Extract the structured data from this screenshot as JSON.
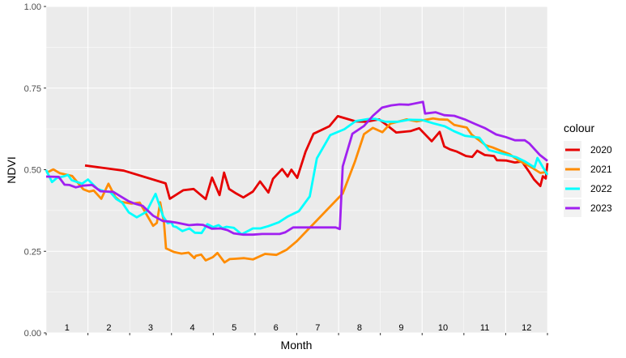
{
  "chart_data": {
    "type": "line",
    "xlabel": "Month",
    "ylabel": "NDVI",
    "xlim": [
      0,
      12
    ],
    "ylim": [
      0,
      1
    ],
    "y_ticks": [
      "0.00",
      "0.25",
      "0.50",
      "0.75",
      "1.00"
    ],
    "y_tick_values": [
      0,
      0.25,
      0.5,
      0.75,
      1.0
    ],
    "month_labels": [
      "1",
      "2",
      "3",
      "4",
      "5",
      "6",
      "7",
      "8",
      "9",
      "10",
      "11",
      "12"
    ],
    "grid": true,
    "panel_background": "#ebebeb",
    "legend": {
      "title": "colour",
      "position": "right"
    },
    "series": [
      {
        "name": "2020",
        "color": "#e60000",
        "x": [
          0.93,
          1.86,
          2.86,
          2.96,
          3.28,
          3.53,
          3.82,
          3.97,
          4.15,
          4.26,
          4.38,
          4.55,
          4.72,
          4.95,
          5.12,
          5.32,
          5.43,
          5.65,
          5.78,
          5.87,
          6.01,
          6.21,
          6.4,
          6.78,
          6.98,
          7.41,
          7.66,
          7.97,
          8.14,
          8.38,
          8.72,
          8.93,
          9.23,
          9.42,
          9.53,
          9.67,
          9.82,
          10.05,
          10.2,
          10.32,
          10.5,
          10.72,
          10.79,
          11.02,
          11.22,
          11.39,
          11.57,
          11.68,
          11.83,
          11.89,
          11.96,
          12.0
        ],
        "y": [
          0.513,
          0.497,
          0.458,
          0.411,
          0.437,
          0.441,
          0.41,
          0.476,
          0.422,
          0.491,
          0.441,
          0.427,
          0.415,
          0.433,
          0.464,
          0.43,
          0.472,
          0.502,
          0.479,
          0.5,
          0.475,
          0.555,
          0.61,
          0.633,
          0.664,
          0.648,
          0.647,
          0.654,
          0.638,
          0.614,
          0.618,
          0.627,
          0.587,
          0.616,
          0.571,
          0.562,
          0.556,
          0.542,
          0.539,
          0.558,
          0.545,
          0.542,
          0.529,
          0.528,
          0.522,
          0.525,
          0.492,
          0.47,
          0.45,
          0.48,
          0.473,
          0.52
        ]
      },
      {
        "name": "2021",
        "color": "#ff8c00",
        "x": [
          0.0,
          0.17,
          0.33,
          0.62,
          0.89,
          1.03,
          1.14,
          1.32,
          1.49,
          1.65,
          1.78,
          2.04,
          2.24,
          2.56,
          2.65,
          2.73,
          2.82,
          2.87,
          3.06,
          3.24,
          3.41,
          3.55,
          3.58,
          3.71,
          3.82,
          3.99,
          4.1,
          4.27,
          4.39,
          4.52,
          4.74,
          4.95,
          5.24,
          5.51,
          5.76,
          6.0,
          7.1,
          7.39,
          7.61,
          7.82,
          8.05,
          8.24,
          8.63,
          8.87,
          9.26,
          9.41,
          9.61,
          9.77,
          10.07,
          10.19,
          10.52,
          10.69,
          10.88,
          11.1,
          11.31,
          11.57,
          11.83,
          12.0
        ],
        "y": [
          0.49,
          0.501,
          0.489,
          0.481,
          0.44,
          0.433,
          0.436,
          0.411,
          0.457,
          0.417,
          0.402,
          0.396,
          0.399,
          0.328,
          0.337,
          0.4,
          0.338,
          0.259,
          0.248,
          0.243,
          0.246,
          0.229,
          0.236,
          0.24,
          0.222,
          0.232,
          0.245,
          0.216,
          0.226,
          0.227,
          0.229,
          0.225,
          0.242,
          0.239,
          0.255,
          0.281,
          0.427,
          0.524,
          0.609,
          0.628,
          0.615,
          0.641,
          0.654,
          0.648,
          0.657,
          0.654,
          0.653,
          0.637,
          0.629,
          0.607,
          0.575,
          0.568,
          0.558,
          0.547,
          0.528,
          0.511,
          0.49,
          0.493
        ]
      },
      {
        "name": "2022",
        "color": "#00ffff",
        "x": [
          0.0,
          0.14,
          0.26,
          0.43,
          0.52,
          0.61,
          0.86,
          1.0,
          1.23,
          1.39,
          1.54,
          1.68,
          1.82,
          1.98,
          2.17,
          2.4,
          2.62,
          2.8,
          2.91,
          3.0,
          3.04,
          3.12,
          3.26,
          3.43,
          3.56,
          3.72,
          3.86,
          4.0,
          4.13,
          4.22,
          4.32,
          4.49,
          4.68,
          4.95,
          5.13,
          5.32,
          5.57,
          5.79,
          6.05,
          6.31,
          6.48,
          6.8,
          7.14,
          7.41,
          7.7,
          7.87,
          8.12,
          8.43,
          8.69,
          9.0,
          9.27,
          9.54,
          9.76,
          10.02,
          10.37,
          10.6,
          10.93,
          11.26,
          11.45,
          11.69,
          11.76,
          12.0
        ],
        "y": [
          0.499,
          0.462,
          0.475,
          0.48,
          0.484,
          0.468,
          0.457,
          0.47,
          0.441,
          0.434,
          0.431,
          0.41,
          0.399,
          0.369,
          0.354,
          0.371,
          0.426,
          0.357,
          0.336,
          0.339,
          0.327,
          0.324,
          0.312,
          0.32,
          0.307,
          0.306,
          0.333,
          0.324,
          0.33,
          0.321,
          0.325,
          0.322,
          0.302,
          0.32,
          0.32,
          0.327,
          0.339,
          0.357,
          0.373,
          0.418,
          0.535,
          0.606,
          0.624,
          0.649,
          0.655,
          0.656,
          0.647,
          0.647,
          0.653,
          0.652,
          0.642,
          0.633,
          0.618,
          0.604,
          0.598,
          0.56,
          0.549,
          0.538,
          0.526,
          0.507,
          0.536,
          0.484
        ]
      },
      {
        "name": "2023",
        "color": "#a020f0",
        "x": [
          0.0,
          0.3,
          0.44,
          0.56,
          0.71,
          0.88,
          1.1,
          1.3,
          1.61,
          1.77,
          1.98,
          2.12,
          2.31,
          2.56,
          2.79,
          2.96,
          3.11,
          3.42,
          3.62,
          3.75,
          3.97,
          4.18,
          4.34,
          4.49,
          4.72,
          4.95,
          5.17,
          5.38,
          5.59,
          5.72,
          5.91,
          6.13,
          6.45,
          6.93,
          7.03,
          7.1,
          7.33,
          7.61,
          7.82,
          8.04,
          8.26,
          8.46,
          8.68,
          9.02,
          9.07,
          9.32,
          9.53,
          9.77,
          10.02,
          10.27,
          10.51,
          10.77,
          11.0,
          11.22,
          11.46,
          11.57,
          11.82,
          12.0
        ],
        "y": [
          0.479,
          0.478,
          0.454,
          0.453,
          0.446,
          0.451,
          0.453,
          0.434,
          0.432,
          0.419,
          0.403,
          0.396,
          0.389,
          0.359,
          0.343,
          0.341,
          0.338,
          0.33,
          0.332,
          0.331,
          0.319,
          0.32,
          0.315,
          0.305,
          0.301,
          0.301,
          0.303,
          0.303,
          0.303,
          0.308,
          0.323,
          0.323,
          0.323,
          0.323,
          0.318,
          0.51,
          0.61,
          0.634,
          0.665,
          0.69,
          0.697,
          0.7,
          0.699,
          0.708,
          0.672,
          0.676,
          0.667,
          0.665,
          0.654,
          0.64,
          0.627,
          0.608,
          0.6,
          0.59,
          0.59,
          0.58,
          0.545,
          0.527
        ]
      }
    ]
  }
}
